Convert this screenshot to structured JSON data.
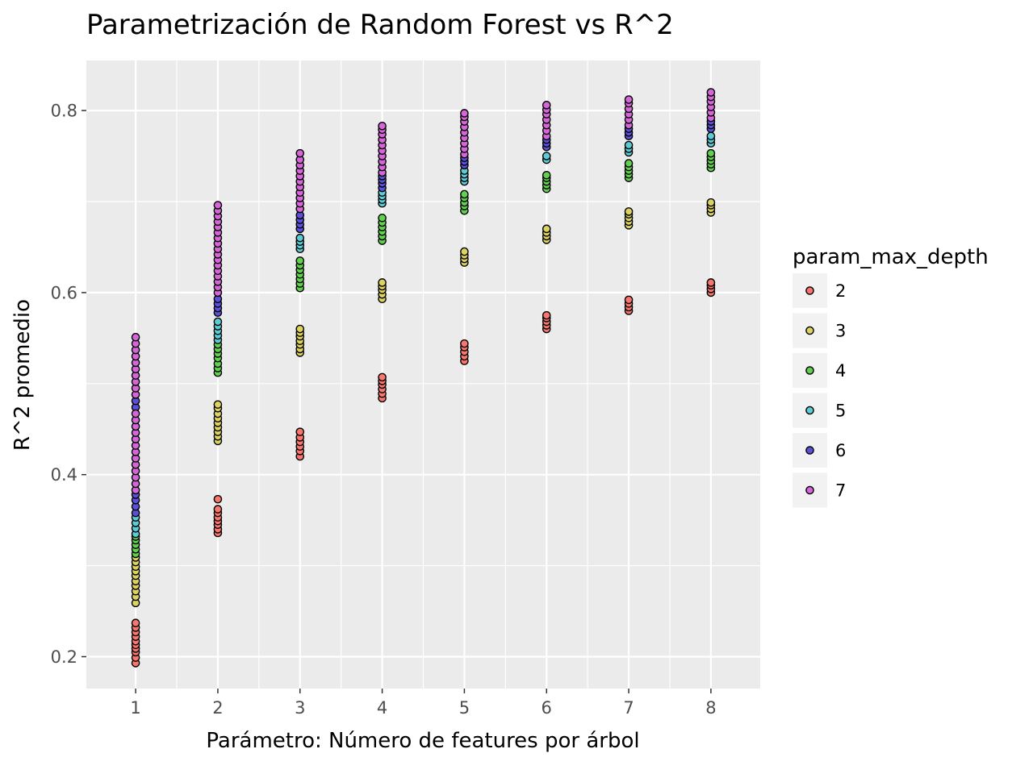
{
  "chart_data": {
    "type": "scatter",
    "title": "Parametrización de Random Forest vs R^2",
    "xlabel": "Parámetro: Número de features por árbol",
    "ylabel": "R^2 promedio",
    "xlim": [
      0.4,
      8.6
    ],
    "ylim": [
      0.165,
      0.855
    ],
    "xticks": [
      1,
      2,
      3,
      4,
      5,
      6,
      7,
      8
    ],
    "xtick_labels": [
      "1",
      "2",
      "3",
      "4",
      "5",
      "6",
      "7",
      "8"
    ],
    "yticks": [
      0.2,
      0.4,
      0.6,
      0.8
    ],
    "ytick_labels": [
      "0.2",
      "0.4",
      "0.6",
      "0.8"
    ],
    "grid": true,
    "background": "#ebebeb",
    "legend": {
      "title": "param_max_depth",
      "position": "right"
    },
    "series": [
      {
        "name": "2",
        "color": "#f8766d",
        "points": [
          [
            1,
            0.193
          ],
          [
            1,
            0.199
          ],
          [
            1,
            0.205
          ],
          [
            1,
            0.209
          ],
          [
            1,
            0.213
          ],
          [
            1,
            0.217
          ],
          [
            1,
            0.222
          ],
          [
            1,
            0.227
          ],
          [
            1,
            0.232
          ],
          [
            1,
            0.237
          ],
          [
            2,
            0.336
          ],
          [
            2,
            0.34
          ],
          [
            2,
            0.345
          ],
          [
            2,
            0.349
          ],
          [
            2,
            0.353
          ],
          [
            2,
            0.358
          ],
          [
            2,
            0.362
          ],
          [
            2,
            0.373
          ],
          [
            3,
            0.42
          ],
          [
            3,
            0.426
          ],
          [
            3,
            0.431
          ],
          [
            3,
            0.436
          ],
          [
            3,
            0.441
          ],
          [
            3,
            0.447
          ],
          [
            4,
            0.484
          ],
          [
            4,
            0.489
          ],
          [
            4,
            0.494
          ],
          [
            4,
            0.499
          ],
          [
            4,
            0.503
          ],
          [
            4,
            0.507
          ],
          [
            5,
            0.525
          ],
          [
            5,
            0.53
          ],
          [
            5,
            0.535
          ],
          [
            5,
            0.54
          ],
          [
            5,
            0.544
          ],
          [
            6,
            0.56
          ],
          [
            6,
            0.564
          ],
          [
            6,
            0.568
          ],
          [
            6,
            0.572
          ],
          [
            6,
            0.575
          ],
          [
            7,
            0.58
          ],
          [
            7,
            0.584
          ],
          [
            7,
            0.588
          ],
          [
            7,
            0.592
          ],
          [
            8,
            0.6
          ],
          [
            8,
            0.604
          ],
          [
            8,
            0.608
          ],
          [
            8,
            0.611
          ]
        ]
      },
      {
        "name": "3",
        "color": "#dbd25f",
        "points": [
          [
            1,
            0.259
          ],
          [
            1,
            0.266
          ],
          [
            1,
            0.272
          ],
          [
            1,
            0.278
          ],
          [
            1,
            0.283
          ],
          [
            1,
            0.289
          ],
          [
            1,
            0.294
          ],
          [
            1,
            0.299
          ],
          [
            1,
            0.304
          ],
          [
            1,
            0.309
          ],
          [
            2,
            0.437
          ],
          [
            2,
            0.442
          ],
          [
            2,
            0.447
          ],
          [
            2,
            0.452
          ],
          [
            2,
            0.457
          ],
          [
            2,
            0.462
          ],
          [
            2,
            0.467
          ],
          [
            2,
            0.473
          ],
          [
            2,
            0.477
          ],
          [
            3,
            0.534
          ],
          [
            3,
            0.538
          ],
          [
            3,
            0.543
          ],
          [
            3,
            0.547
          ],
          [
            3,
            0.552
          ],
          [
            3,
            0.556
          ],
          [
            3,
            0.56
          ],
          [
            4,
            0.593
          ],
          [
            4,
            0.598
          ],
          [
            4,
            0.603
          ],
          [
            4,
            0.607
          ],
          [
            4,
            0.611
          ],
          [
            5,
            0.633
          ],
          [
            5,
            0.637
          ],
          [
            5,
            0.641
          ],
          [
            5,
            0.645
          ],
          [
            6,
            0.658
          ],
          [
            6,
            0.662
          ],
          [
            6,
            0.666
          ],
          [
            6,
            0.67
          ],
          [
            7,
            0.674
          ],
          [
            7,
            0.678
          ],
          [
            7,
            0.682
          ],
          [
            7,
            0.686
          ],
          [
            7,
            0.689
          ],
          [
            8,
            0.688
          ],
          [
            8,
            0.692
          ],
          [
            8,
            0.696
          ],
          [
            8,
            0.699
          ]
        ]
      },
      {
        "name": "4",
        "color": "#61d04f",
        "points": [
          [
            1,
            0.313
          ],
          [
            1,
            0.318
          ],
          [
            1,
            0.323
          ],
          [
            1,
            0.328
          ],
          [
            1,
            0.332
          ],
          [
            2,
            0.512
          ],
          [
            2,
            0.517
          ],
          [
            2,
            0.522
          ],
          [
            2,
            0.528
          ],
          [
            2,
            0.533
          ],
          [
            2,
            0.538
          ],
          [
            2,
            0.543
          ],
          [
            3,
            0.605
          ],
          [
            3,
            0.61
          ],
          [
            3,
            0.615
          ],
          [
            3,
            0.62
          ],
          [
            3,
            0.625
          ],
          [
            3,
            0.63
          ],
          [
            3,
            0.635
          ],
          [
            4,
            0.657
          ],
          [
            4,
            0.662
          ],
          [
            4,
            0.667
          ],
          [
            4,
            0.672
          ],
          [
            4,
            0.677
          ],
          [
            4,
            0.682
          ],
          [
            5,
            0.69
          ],
          [
            5,
            0.695
          ],
          [
            5,
            0.699
          ],
          [
            5,
            0.704
          ],
          [
            5,
            0.708
          ],
          [
            6,
            0.714
          ],
          [
            6,
            0.718
          ],
          [
            6,
            0.722
          ],
          [
            6,
            0.726
          ],
          [
            6,
            0.729
          ],
          [
            7,
            0.726
          ],
          [
            7,
            0.73
          ],
          [
            7,
            0.734
          ],
          [
            7,
            0.738
          ],
          [
            7,
            0.742
          ],
          [
            8,
            0.737
          ],
          [
            8,
            0.741
          ],
          [
            8,
            0.745
          ],
          [
            8,
            0.749
          ],
          [
            8,
            0.753
          ]
        ]
      },
      {
        "name": "5",
        "color": "#5bcbd6",
        "points": [
          [
            1,
            0.335
          ],
          [
            1,
            0.341
          ],
          [
            1,
            0.347
          ],
          [
            1,
            0.353
          ],
          [
            2,
            0.548
          ],
          [
            2,
            0.553
          ],
          [
            2,
            0.558
          ],
          [
            2,
            0.563
          ],
          [
            2,
            0.568
          ],
          [
            3,
            0.648
          ],
          [
            3,
            0.652
          ],
          [
            3,
            0.656
          ],
          [
            3,
            0.66
          ],
          [
            4,
            0.698
          ],
          [
            4,
            0.702
          ],
          [
            4,
            0.706
          ],
          [
            4,
            0.71
          ],
          [
            5,
            0.722
          ],
          [
            5,
            0.726
          ],
          [
            5,
            0.73
          ],
          [
            5,
            0.734
          ],
          [
            6,
            0.746
          ],
          [
            6,
            0.75
          ],
          [
            7,
            0.754
          ],
          [
            7,
            0.758
          ],
          [
            7,
            0.762
          ],
          [
            8,
            0.764
          ],
          [
            8,
            0.768
          ],
          [
            8,
            0.772
          ]
        ]
      },
      {
        "name": "6",
        "color": "#5c4fd8",
        "points": [
          [
            1,
            0.358
          ],
          [
            1,
            0.365
          ],
          [
            1,
            0.372
          ],
          [
            1,
            0.378
          ],
          [
            1,
            0.474
          ],
          [
            1,
            0.481
          ],
          [
            2,
            0.578
          ],
          [
            2,
            0.583
          ],
          [
            2,
            0.588
          ],
          [
            2,
            0.593
          ],
          [
            3,
            0.67
          ],
          [
            3,
            0.675
          ],
          [
            3,
            0.68
          ],
          [
            3,
            0.685
          ],
          [
            4,
            0.715
          ],
          [
            4,
            0.72
          ],
          [
            4,
            0.724
          ],
          [
            4,
            0.728
          ],
          [
            5,
            0.74
          ],
          [
            5,
            0.744
          ],
          [
            5,
            0.748
          ],
          [
            6,
            0.76
          ],
          [
            6,
            0.764
          ],
          [
            6,
            0.768
          ],
          [
            7,
            0.772
          ],
          [
            7,
            0.776
          ],
          [
            7,
            0.78
          ],
          [
            8,
            0.78
          ],
          [
            8,
            0.784
          ],
          [
            8,
            0.788
          ]
        ]
      },
      {
        "name": "7",
        "color": "#d566d8",
        "points": [
          [
            1,
            0.383
          ],
          [
            1,
            0.39
          ],
          [
            1,
            0.397
          ],
          [
            1,
            0.404
          ],
          [
            1,
            0.411
          ],
          [
            1,
            0.418
          ],
          [
            1,
            0.425
          ],
          [
            1,
            0.432
          ],
          [
            1,
            0.439
          ],
          [
            1,
            0.446
          ],
          [
            1,
            0.453
          ],
          [
            1,
            0.46
          ],
          [
            1,
            0.467
          ],
          [
            1,
            0.488
          ],
          [
            1,
            0.495
          ],
          [
            1,
            0.502
          ],
          [
            1,
            0.509
          ],
          [
            1,
            0.516
          ],
          [
            1,
            0.523
          ],
          [
            1,
            0.53
          ],
          [
            1,
            0.537
          ],
          [
            1,
            0.544
          ],
          [
            1,
            0.551
          ],
          [
            2,
            0.6
          ],
          [
            2,
            0.606
          ],
          [
            2,
            0.612
          ],
          [
            2,
            0.618
          ],
          [
            2,
            0.624
          ],
          [
            2,
            0.63
          ],
          [
            2,
            0.636
          ],
          [
            2,
            0.642
          ],
          [
            2,
            0.648
          ],
          [
            2,
            0.654
          ],
          [
            2,
            0.66
          ],
          [
            2,
            0.666
          ],
          [
            2,
            0.672
          ],
          [
            2,
            0.678
          ],
          [
            2,
            0.684
          ],
          [
            2,
            0.69
          ],
          [
            2,
            0.696
          ],
          [
            3,
            0.692
          ],
          [
            3,
            0.698
          ],
          [
            3,
            0.704
          ],
          [
            3,
            0.71
          ],
          [
            3,
            0.716
          ],
          [
            3,
            0.722
          ],
          [
            3,
            0.728
          ],
          [
            3,
            0.734
          ],
          [
            3,
            0.74
          ],
          [
            3,
            0.746
          ],
          [
            3,
            0.753
          ],
          [
            4,
            0.732
          ],
          [
            4,
            0.738
          ],
          [
            4,
            0.744
          ],
          [
            4,
            0.75
          ],
          [
            4,
            0.756
          ],
          [
            4,
            0.762
          ],
          [
            4,
            0.768
          ],
          [
            4,
            0.774
          ],
          [
            4,
            0.779
          ],
          [
            4,
            0.783
          ],
          [
            5,
            0.752
          ],
          [
            5,
            0.758
          ],
          [
            5,
            0.764
          ],
          [
            5,
            0.77
          ],
          [
            5,
            0.776
          ],
          [
            5,
            0.782
          ],
          [
            5,
            0.788
          ],
          [
            5,
            0.793
          ],
          [
            5,
            0.797
          ],
          [
            6,
            0.772
          ],
          [
            6,
            0.778
          ],
          [
            6,
            0.784
          ],
          [
            6,
            0.79
          ],
          [
            6,
            0.796
          ],
          [
            6,
            0.801
          ],
          [
            6,
            0.806
          ],
          [
            7,
            0.784
          ],
          [
            7,
            0.79
          ],
          [
            7,
            0.796
          ],
          [
            7,
            0.802
          ],
          [
            7,
            0.808
          ],
          [
            7,
            0.812
          ],
          [
            8,
            0.792
          ],
          [
            8,
            0.798
          ],
          [
            8,
            0.804
          ],
          [
            8,
            0.81
          ],
          [
            8,
            0.815
          ],
          [
            8,
            0.82
          ]
        ]
      }
    ]
  }
}
